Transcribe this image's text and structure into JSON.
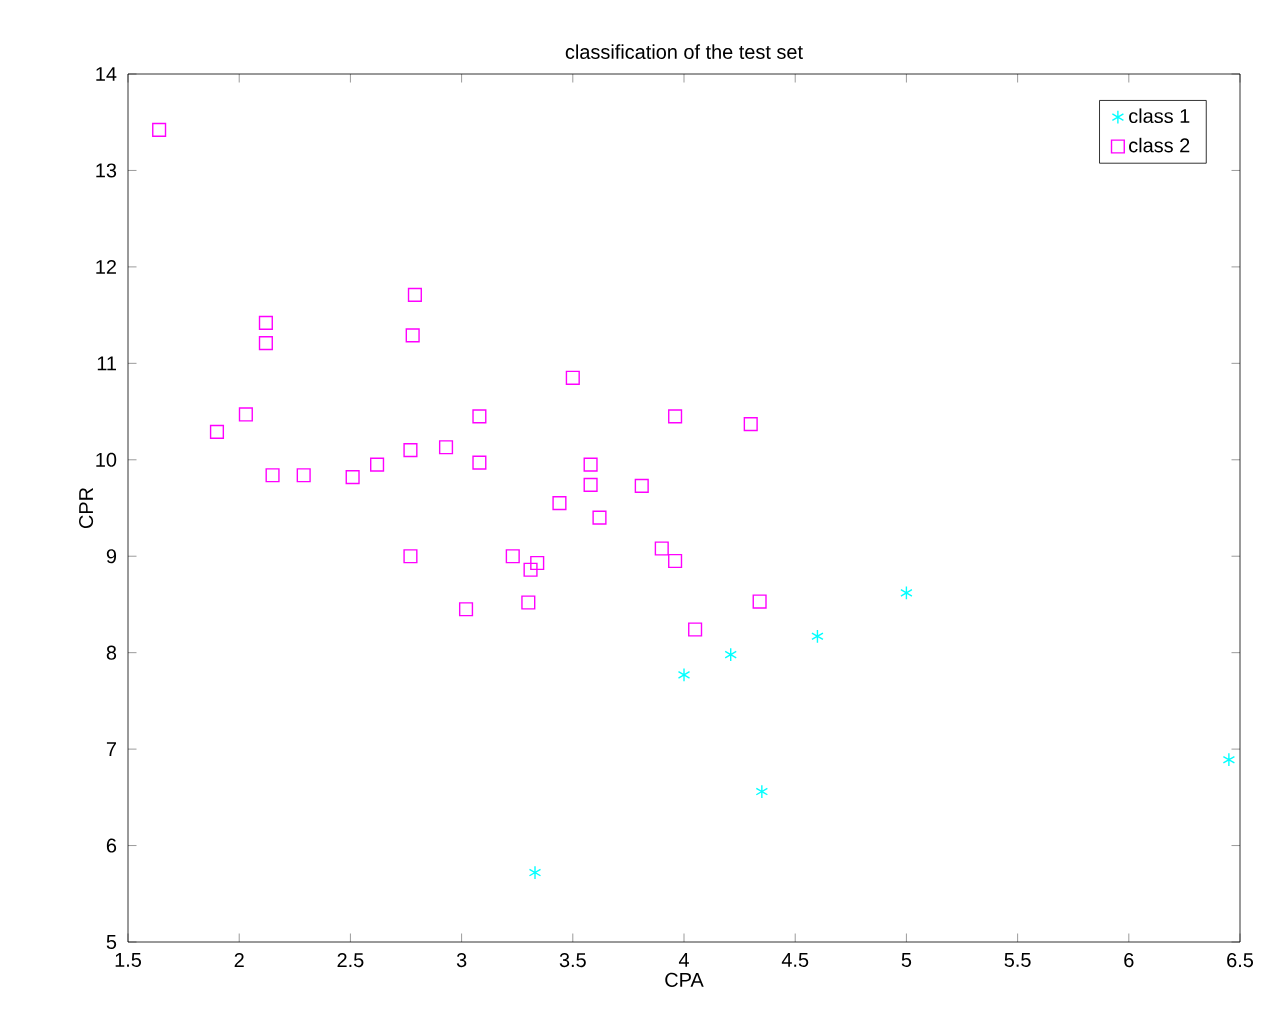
{
  "chart_data": {
    "type": "scatter",
    "title": "classification of the test set",
    "xlabel": "CPA",
    "ylabel": "CPR",
    "xlim": [
      1.5,
      6.5
    ],
    "ylim": [
      5,
      14
    ],
    "xticks": [
      1.5,
      2,
      2.5,
      3,
      3.5,
      4,
      4.5,
      5,
      5.5,
      6,
      6.5
    ],
    "yticks": [
      5,
      6,
      7,
      8,
      9,
      10,
      11,
      12,
      13,
      14
    ],
    "legend": "top right",
    "grid": false,
    "series": [
      {
        "name": "class 1",
        "color": "#00ffff",
        "marker": "cross",
        "x": [
          4.0,
          4.21,
          4.6,
          5.0,
          4.35,
          6.45,
          3.33
        ],
        "values": [
          7.77,
          7.98,
          8.17,
          8.62,
          6.56,
          6.89,
          5.72
        ]
      },
      {
        "name": "class 2",
        "color": "#ff00ff",
        "marker": "square",
        "x": [
          1.64,
          2.12,
          2.12,
          2.79,
          2.78,
          3.5,
          1.9,
          2.03,
          3.08,
          3.96,
          2.15,
          2.29,
          2.51,
          2.62,
          2.77,
          2.93,
          3.08,
          3.58,
          3.58,
          3.81,
          3.44,
          3.62,
          2.77,
          3.23,
          3.34,
          3.31,
          3.9,
          3.96,
          4.34,
          4.05,
          3.3,
          3.02,
          4.3
        ],
        "values": [
          13.42,
          11.42,
          11.21,
          11.71,
          11.29,
          10.85,
          10.29,
          10.47,
          10.45,
          10.45,
          9.84,
          9.84,
          9.82,
          9.95,
          10.1,
          10.13,
          9.97,
          9.95,
          9.74,
          9.73,
          9.55,
          9.4,
          9.0,
          9.0,
          8.93,
          8.86,
          9.08,
          8.95,
          8.53,
          8.24,
          8.52,
          8.45,
          10.37
        ]
      }
    ]
  }
}
